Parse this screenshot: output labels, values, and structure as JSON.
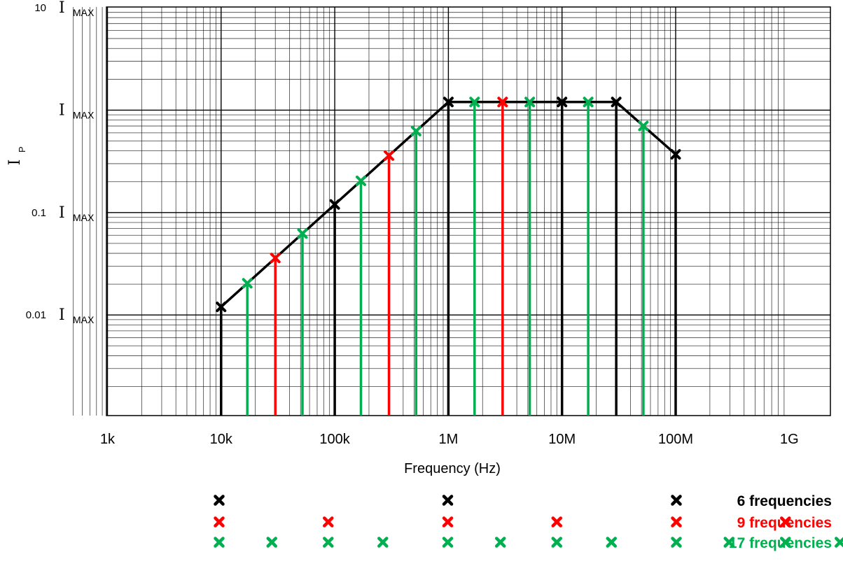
{
  "chart_data": {
    "type": "line",
    "xlabel": "Frequency (Hz)",
    "ylabel": {
      "main": "I",
      "sub": "P"
    },
    "x_scale": "log",
    "y_scale": "log",
    "xlim": [
      400,
      1000000000
    ],
    "ylim": [
      0.001,
      10
    ],
    "grid": true,
    "x_ticks": [
      {
        "value": 1000,
        "label": "1k"
      },
      {
        "value": 10000,
        "label": "10k"
      },
      {
        "value": 100000,
        "label": "100k"
      },
      {
        "value": 1000000,
        "label": "1M"
      },
      {
        "value": 10000000,
        "label": "10M"
      },
      {
        "value": 100000000,
        "label": "100M"
      },
      {
        "value": 1000000000,
        "label": "1G"
      }
    ],
    "y_ticks": [
      {
        "value": 10,
        "prefix": "10",
        "symbol": "I",
        "sub": "MAX"
      },
      {
        "value": 1,
        "prefix": "",
        "symbol": "I",
        "sub": "MAX"
      },
      {
        "value": 0.1,
        "prefix": "0.1",
        "symbol": "I",
        "sub": "MAX"
      },
      {
        "value": 0.01,
        "prefix": "0.01",
        "symbol": "I",
        "sub": "MAX"
      }
    ],
    "curve": {
      "color": "#000000",
      "x": [
        10000,
        1000000,
        30000000,
        100000000
      ],
      "y": [
        0.012,
        1.2,
        1.2,
        0.37
      ]
    },
    "series": [
      {
        "name": "6 frequencies",
        "color": "#000000",
        "x": [
          10000,
          100000,
          1000000,
          10000000,
          30000000,
          100000000
        ]
      },
      {
        "name": "9 frequencies",
        "color": "#ff0000",
        "x": [
          10000,
          30000,
          100000,
          300000,
          1000000,
          3000000,
          10000000,
          30000000,
          100000000
        ]
      },
      {
        "name": "17 frequencies",
        "color": "#00b050",
        "x": [
          10000,
          17000,
          30000,
          52000,
          100000,
          170000,
          300000,
          520000,
          1000000,
          1700000,
          3000000,
          5200000,
          10000000,
          17000000,
          30000000,
          52000000,
          100000000
        ]
      }
    ],
    "drawn_markers": [
      {
        "x": 10000,
        "color": "#000000"
      },
      {
        "x": 17000,
        "color": "#00b050"
      },
      {
        "x": 30000,
        "color": "#ff0000"
      },
      {
        "x": 52000,
        "color": "#00b050"
      },
      {
        "x": 100000,
        "color": "#000000"
      },
      {
        "x": 170000,
        "color": "#00b050"
      },
      {
        "x": 300000,
        "color": "#ff0000"
      },
      {
        "x": 520000,
        "color": "#00b050"
      },
      {
        "x": 1000000,
        "color": "#000000"
      },
      {
        "x": 1700000,
        "color": "#00b050"
      },
      {
        "x": 3000000,
        "color": "#ff0000"
      },
      {
        "x": 5200000,
        "color": "#00b050"
      },
      {
        "x": 10000000,
        "color": "#000000"
      },
      {
        "x": 17000000,
        "color": "#00b050"
      },
      {
        "x": 30000000,
        "color": "#000000"
      },
      {
        "x": 52000000,
        "color": "#00b050"
      },
      {
        "x": 100000000,
        "color": "#000000"
      }
    ]
  }
}
